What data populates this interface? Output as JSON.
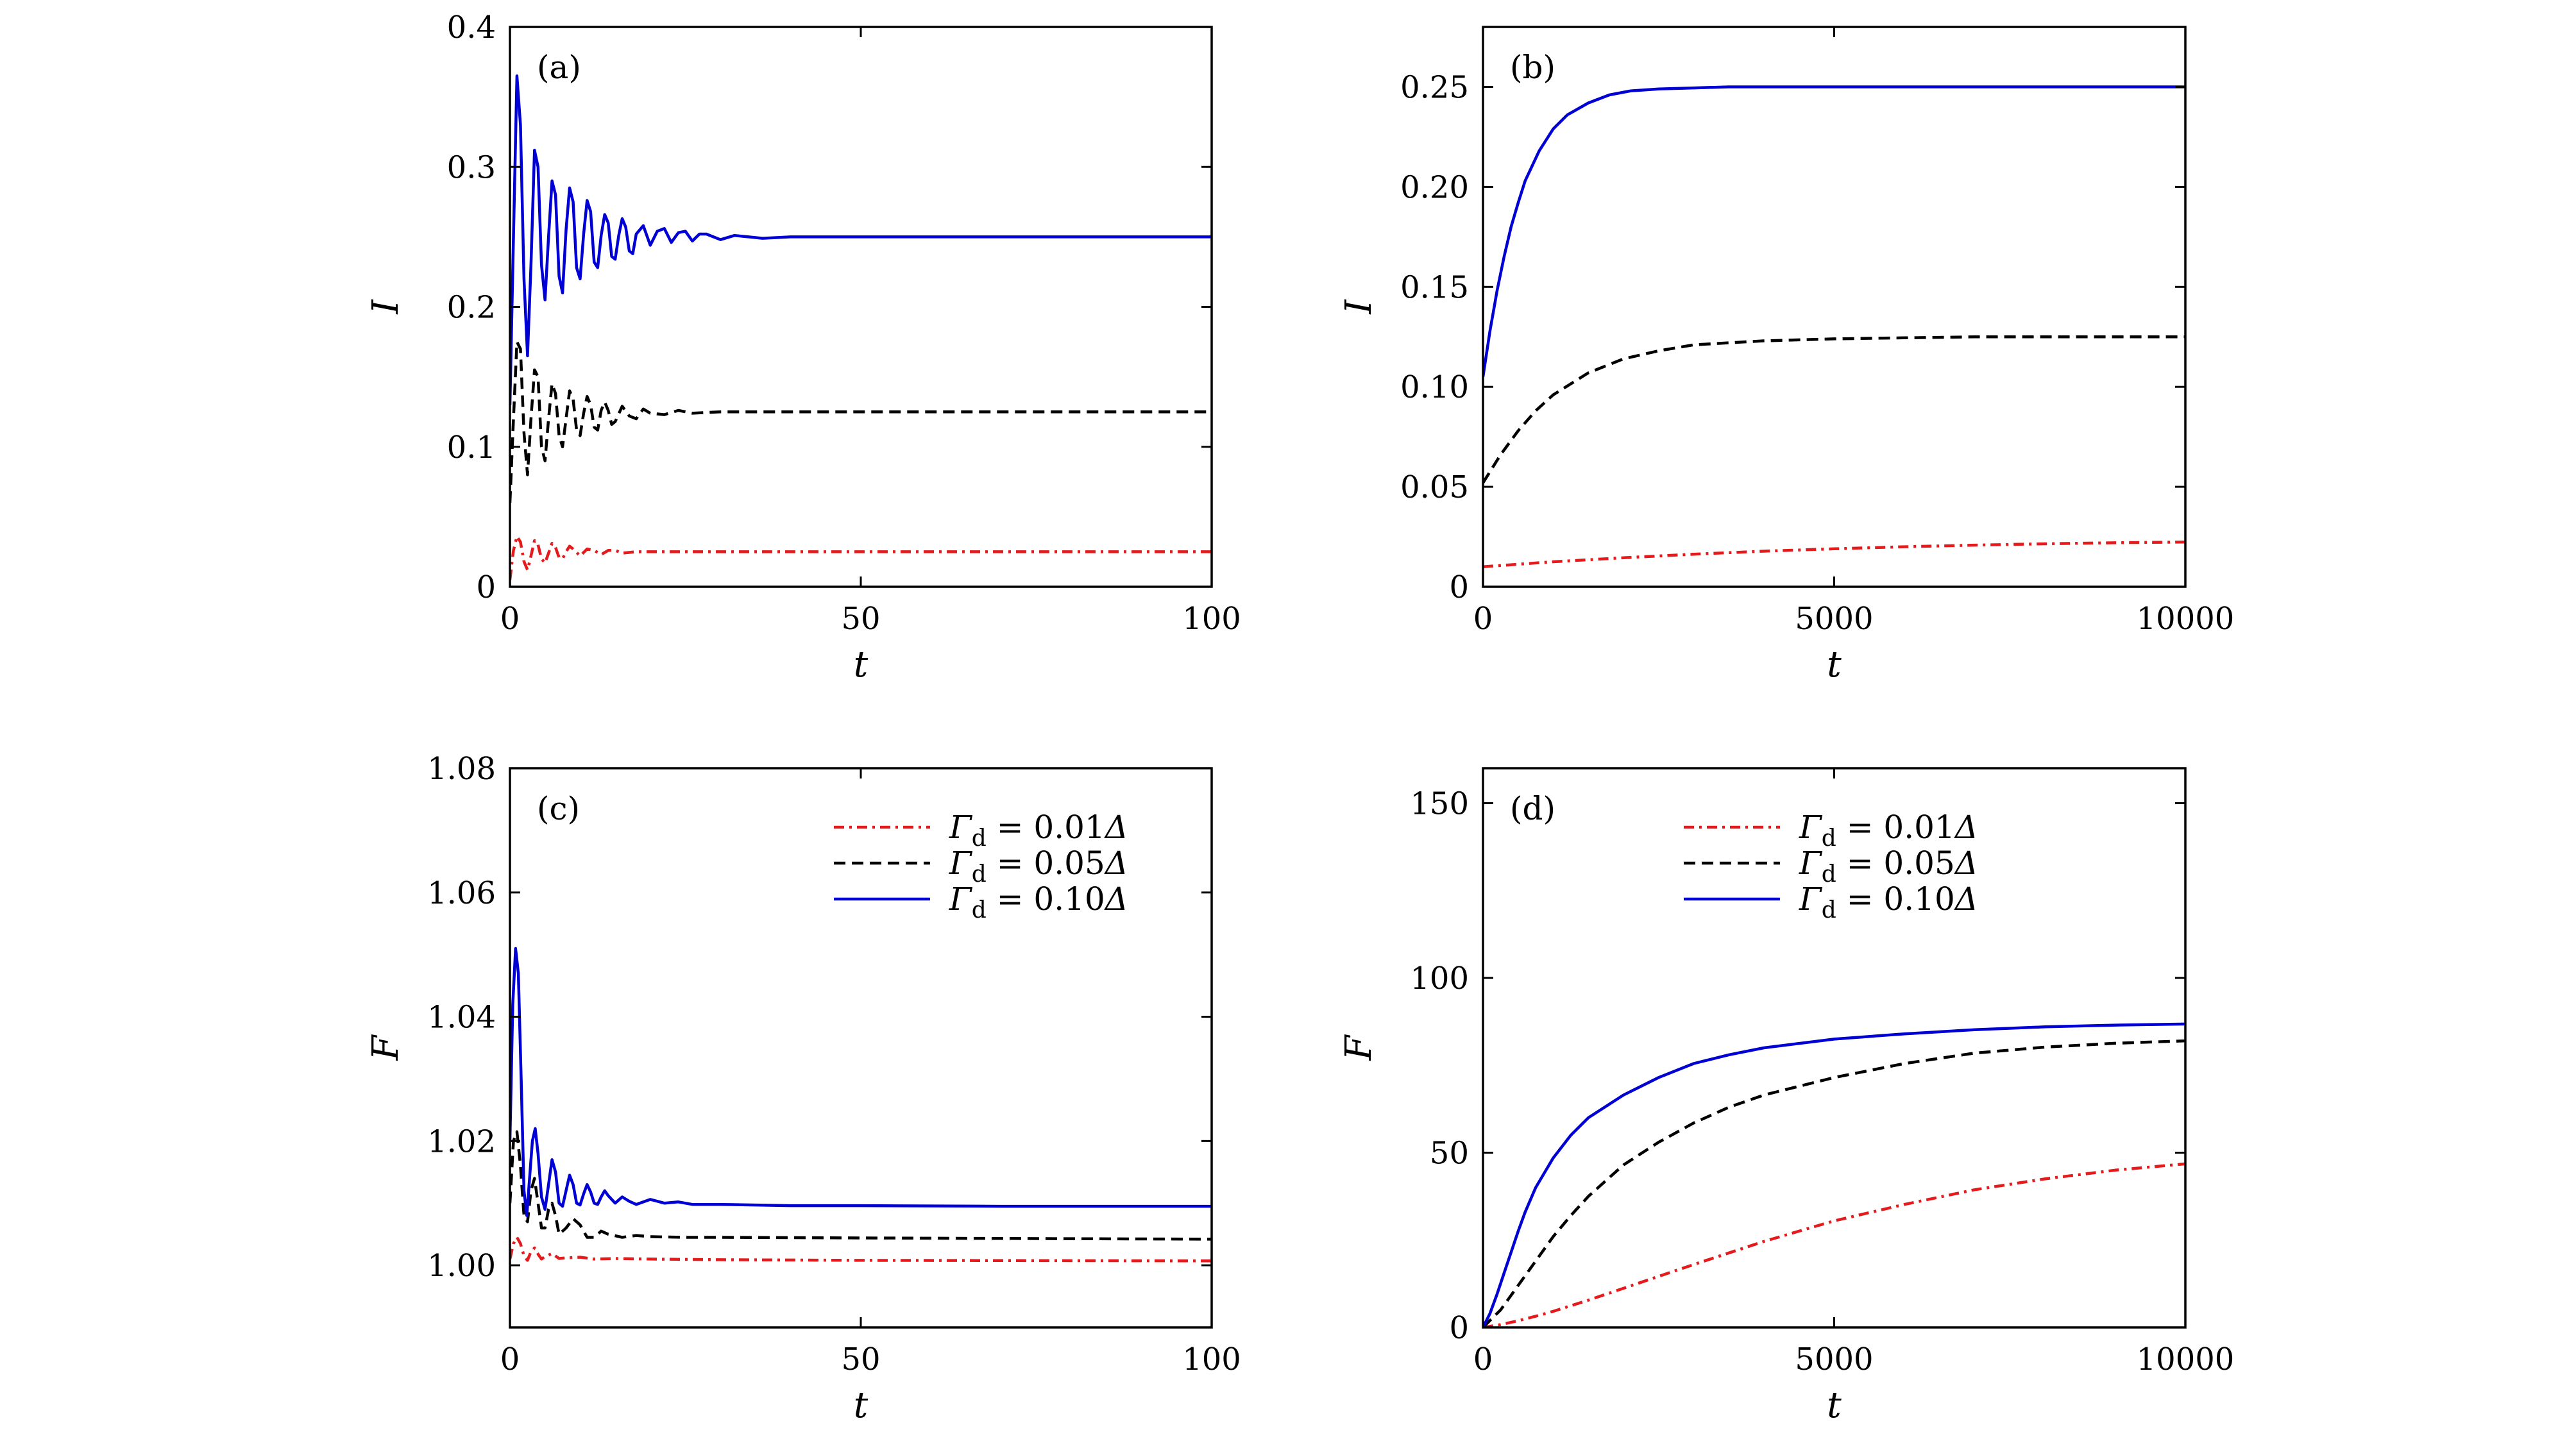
{
  "chart_data": [
    {
      "type": "line",
      "panel_label": "(a)",
      "xlabel": "t",
      "ylabel": "I",
      "xlim": [
        0,
        100
      ],
      "ylim": [
        0,
        0.4
      ],
      "xticks": [
        0,
        50,
        100
      ],
      "xtick_labels": [
        "0",
        "50",
        "100"
      ],
      "yticks": [
        0,
        0.1,
        0.2,
        0.3,
        0.4
      ],
      "ytick_labels": [
        "0",
        "0.1",
        "0.2",
        "0.3",
        "0.4"
      ],
      "grid": false,
      "legend": null,
      "series": [
        {
          "style": "dashdot",
          "color": "#e41a1c",
          "x": [
            0,
            0.5,
            1.0,
            1.5,
            2.0,
            2.5,
            3.0,
            3.5,
            4.0,
            4.5,
            5.0,
            5.5,
            6.0,
            6.5,
            7.0,
            7.5,
            8.0,
            8.5,
            9.0,
            10,
            11,
            12,
            13,
            14,
            15,
            16,
            18,
            20,
            25,
            30,
            40,
            50,
            60,
            80,
            100
          ],
          "y": [
            0.005,
            0.026,
            0.036,
            0.032,
            0.018,
            0.012,
            0.022,
            0.033,
            0.03,
            0.02,
            0.017,
            0.024,
            0.031,
            0.028,
            0.021,
            0.02,
            0.025,
            0.029,
            0.027,
            0.022,
            0.027,
            0.026,
            0.023,
            0.026,
            0.026,
            0.024,
            0.025,
            0.025,
            0.025,
            0.025,
            0.025,
            0.025,
            0.025,
            0.025,
            0.025
          ]
        },
        {
          "style": "dashed",
          "color": "#000000",
          "x": [
            0,
            0.5,
            1.0,
            1.5,
            2.0,
            2.5,
            3.0,
            3.5,
            4.0,
            4.5,
            5.0,
            5.5,
            6.0,
            6.5,
            7.0,
            7.5,
            8.0,
            8.5,
            9.0,
            9.5,
            10,
            10.5,
            11,
            11.5,
            12,
            12.5,
            13,
            13.5,
            14,
            14.5,
            15,
            16,
            17,
            18,
            19,
            20,
            22,
            24,
            26,
            30,
            40,
            50,
            60,
            80,
            100
          ],
          "y": [
            0.06,
            0.12,
            0.175,
            0.17,
            0.11,
            0.08,
            0.12,
            0.155,
            0.15,
            0.1,
            0.09,
            0.12,
            0.145,
            0.138,
            0.108,
            0.1,
            0.12,
            0.14,
            0.134,
            0.112,
            0.108,
            0.124,
            0.136,
            0.13,
            0.114,
            0.112,
            0.126,
            0.132,
            0.126,
            0.116,
            0.118,
            0.129,
            0.122,
            0.12,
            0.127,
            0.124,
            0.123,
            0.126,
            0.124,
            0.125,
            0.125,
            0.125,
            0.125,
            0.125,
            0.125
          ]
        },
        {
          "style": "solid",
          "color": "#0000d4",
          "x": [
            0,
            0.5,
            1.0,
            1.5,
            2.0,
            2.5,
            3.0,
            3.5,
            4.0,
            4.5,
            5.0,
            5.5,
            6.0,
            6.5,
            7.0,
            7.5,
            8.0,
            8.5,
            9.0,
            9.5,
            10,
            10.5,
            11,
            11.5,
            12,
            12.5,
            13,
            13.5,
            14,
            14.5,
            15,
            15.5,
            16,
            16.5,
            17,
            17.5,
            18,
            19,
            20,
            21,
            22,
            23,
            24,
            25,
            26,
            27,
            28,
            30,
            32,
            34,
            36,
            40,
            50,
            60,
            80,
            100
          ],
          "y": [
            0.13,
            0.25,
            0.365,
            0.33,
            0.22,
            0.165,
            0.23,
            0.312,
            0.3,
            0.23,
            0.205,
            0.25,
            0.29,
            0.28,
            0.222,
            0.21,
            0.255,
            0.285,
            0.275,
            0.228,
            0.22,
            0.252,
            0.276,
            0.268,
            0.232,
            0.228,
            0.251,
            0.266,
            0.26,
            0.236,
            0.234,
            0.251,
            0.263,
            0.257,
            0.24,
            0.238,
            0.252,
            0.258,
            0.244,
            0.254,
            0.256,
            0.246,
            0.253,
            0.254,
            0.247,
            0.252,
            0.252,
            0.248,
            0.251,
            0.25,
            0.249,
            0.25,
            0.25,
            0.25,
            0.25,
            0.25
          ]
        }
      ]
    },
    {
      "type": "line",
      "panel_label": "(b)",
      "xlabel": "t",
      "ylabel": "I",
      "xlim": [
        0,
        10000
      ],
      "ylim": [
        0,
        0.28
      ],
      "xticks": [
        0,
        5000,
        10000
      ],
      "xtick_labels": [
        "0",
        "5000",
        "10000"
      ],
      "yticks": [
        0,
        0.05,
        0.1,
        0.15,
        0.2,
        0.25
      ],
      "ytick_labels": [
        "0",
        "0.05",
        "0.10",
        "0.15",
        "0.20",
        "0.25"
      ],
      "grid": false,
      "legend": null,
      "series": [
        {
          "style": "dashdot",
          "color": "#e41a1c",
          "x": [
            0,
            1000,
            2000,
            3000,
            4000,
            5000,
            6000,
            7000,
            8000,
            9000,
            10000
          ],
          "y": [
            0.01,
            0.0125,
            0.0145,
            0.0163,
            0.0178,
            0.019,
            0.02,
            0.0208,
            0.0215,
            0.022,
            0.0224
          ]
        },
        {
          "style": "dashed",
          "color": "#000000",
          "x": [
            0,
            250,
            500,
            750,
            1000,
            1500,
            2000,
            2500,
            3000,
            4000,
            5000,
            6000,
            7000,
            8000,
            9000,
            10000
          ],
          "y": [
            0.052,
            0.066,
            0.078,
            0.088,
            0.096,
            0.107,
            0.114,
            0.118,
            0.121,
            0.123,
            0.124,
            0.1245,
            0.125,
            0.125,
            0.125,
            0.125
          ]
        },
        {
          "style": "solid",
          "color": "#0000d4",
          "x": [
            0,
            100,
            200,
            300,
            400,
            500,
            600,
            800,
            1000,
            1200,
            1500,
            1800,
            2100,
            2500,
            3000,
            3500,
            4000,
            5000,
            6000,
            8000,
            10000
          ],
          "y": [
            0.105,
            0.128,
            0.148,
            0.165,
            0.18,
            0.192,
            0.203,
            0.218,
            0.229,
            0.236,
            0.242,
            0.246,
            0.248,
            0.249,
            0.2495,
            0.25,
            0.25,
            0.25,
            0.25,
            0.25,
            0.25
          ]
        }
      ]
    },
    {
      "type": "line",
      "panel_label": "(c)",
      "xlabel": "t",
      "ylabel": "F",
      "xlim": [
        0,
        100
      ],
      "ylim": [
        0.99,
        1.08
      ],
      "xticks": [
        0,
        50,
        100
      ],
      "xtick_labels": [
        "0",
        "50",
        "100"
      ],
      "yticks": [
        1.0,
        1.02,
        1.04,
        1.06,
        1.08
      ],
      "ytick_labels": [
        "1.00",
        "1.02",
        "1.04",
        "1.06",
        "1.08"
      ],
      "grid": false,
      "legend": {
        "placement": "top-right",
        "entries": [
          {
            "symbol": "Γ",
            "subscript": "d",
            "rest": " = 0.01",
            "unit": "Δ"
          },
          {
            "symbol": "Γ",
            "subscript": "d",
            "rest": " = 0.05",
            "unit": "Δ"
          },
          {
            "symbol": "Γ",
            "subscript": "d",
            "rest": " = 0.10",
            "unit": "Δ"
          }
        ]
      },
      "series": [
        {
          "style": "dashdot",
          "color": "#e41a1c",
          "x": [
            0,
            0.5,
            1.0,
            1.5,
            2.0,
            2.5,
            3.0,
            3.5,
            4.0,
            4.5,
            5.0,
            6.0,
            7.0,
            8.0,
            10,
            12,
            15,
            20,
            30,
            50,
            100
          ],
          "y": [
            1.001,
            1.0035,
            1.0045,
            1.0035,
            1.0015,
            1.0008,
            1.0022,
            1.0028,
            1.0018,
            1.001,
            1.0014,
            1.0019,
            1.0011,
            1.0012,
            1.0013,
            1.001,
            1.0011,
            1.001,
            1.0009,
            1.0008,
            1.0007
          ]
        },
        {
          "style": "dashed",
          "color": "#000000",
          "x": [
            0,
            0.5,
            1.0,
            1.5,
            2.0,
            2.5,
            3.0,
            3.5,
            4.0,
            4.5,
            5.0,
            5.5,
            6.0,
            6.5,
            7.0,
            8.0,
            9.0,
            10,
            11,
            12,
            13,
            14,
            16,
            18,
            20,
            25,
            30,
            50,
            100
          ],
          "y": [
            1.01,
            1.02,
            1.0215,
            1.016,
            1.008,
            1.007,
            1.012,
            1.014,
            1.01,
            1.006,
            1.006,
            1.009,
            1.01,
            1.008,
            1.005,
            1.006,
            1.0075,
            1.0065,
            1.0045,
            1.0045,
            1.0055,
            1.005,
            1.0045,
            1.0048,
            1.0046,
            1.0045,
            1.0045,
            1.0044,
            1.0042
          ]
        },
        {
          "style": "solid",
          "color": "#0000d4",
          "x": [
            0,
            0.4,
            0.8,
            1.2,
            1.6,
            2.0,
            2.4,
            2.8,
            3.2,
            3.6,
            4.0,
            4.5,
            5.0,
            5.5,
            6.0,
            6.5,
            7.0,
            7.5,
            8.0,
            8.5,
            9.0,
            9.5,
            10,
            10.5,
            11,
            11.5,
            12,
            12.5,
            13,
            13.5,
            14,
            15,
            16,
            17,
            18,
            20,
            22,
            24,
            26,
            30,
            40,
            50,
            70,
            100
          ],
          "y": [
            1.02,
            1.042,
            1.051,
            1.047,
            1.03,
            1.012,
            1.008,
            1.014,
            1.02,
            1.022,
            1.018,
            1.011,
            1.009,
            1.013,
            1.017,
            1.015,
            1.01,
            1.0095,
            1.012,
            1.0145,
            1.013,
            1.01,
            1.0097,
            1.0115,
            1.013,
            1.0118,
            1.01,
            1.0098,
            1.011,
            1.012,
            1.0112,
            1.01,
            1.011,
            1.0103,
            1.0098,
            1.0106,
            1.01,
            1.0102,
            1.0098,
            1.0098,
            1.0096,
            1.0096,
            1.0095,
            1.0095
          ]
        }
      ]
    },
    {
      "type": "line",
      "panel_label": "(d)",
      "xlabel": "t",
      "ylabel": "F",
      "xlim": [
        0,
        10000
      ],
      "ylim": [
        0,
        160
      ],
      "xticks": [
        0,
        5000,
        10000
      ],
      "xtick_labels": [
        "0",
        "5000",
        "10000"
      ],
      "yticks": [
        0,
        50,
        100,
        150
      ],
      "ytick_labels": [
        "0",
        "50",
        "100",
        "150"
      ],
      "grid": false,
      "legend": {
        "placement": "top-center",
        "entries": [
          {
            "symbol": "Γ",
            "subscript": "d",
            "rest": " = 0.01",
            "unit": "Δ"
          },
          {
            "symbol": "Γ",
            "subscript": "d",
            "rest": " = 0.05",
            "unit": "Δ"
          },
          {
            "symbol": "Γ",
            "subscript": "d",
            "rest": " = 0.10",
            "unit": "Δ"
          }
        ]
      },
      "series": [
        {
          "style": "dashdot",
          "color": "#e41a1c",
          "x": [
            0,
            250,
            500,
            750,
            1000,
            1500,
            2000,
            2500,
            3000,
            4000,
            5000,
            6000,
            7000,
            8000,
            9000,
            10000
          ],
          "y": [
            0,
            0.8,
            1.9,
            3.2,
            4.6,
            7.8,
            11.2,
            14.6,
            18.0,
            24.6,
            30.5,
            35.2,
            39.4,
            42.5,
            45.0,
            46.8
          ]
        },
        {
          "style": "dashed",
          "color": "#000000",
          "x": [
            0,
            250,
            500,
            750,
            1000,
            1250,
            1500,
            2000,
            2500,
            3000,
            3500,
            4000,
            5000,
            6000,
            7000,
            8000,
            9000,
            10000
          ],
          "y": [
            0,
            5,
            12,
            19,
            26,
            32,
            37.5,
            46.5,
            53,
            58.5,
            63,
            66.5,
            71.5,
            75.5,
            78.5,
            80.2,
            81.3,
            82.0
          ]
        },
        {
          "style": "solid",
          "color": "#0000d4",
          "x": [
            0,
            100,
            200,
            300,
            400,
            500,
            600,
            750,
            1000,
            1250,
            1500,
            2000,
            2500,
            3000,
            3500,
            4000,
            5000,
            6000,
            7000,
            8000,
            9000,
            10000
          ],
          "y": [
            0,
            4,
            9.5,
            15.5,
            21.5,
            27.5,
            33,
            40,
            48.5,
            55,
            60,
            66.5,
            71.5,
            75.5,
            78.0,
            80.0,
            82.5,
            84.0,
            85.2,
            86.0,
            86.5,
            86.8
          ]
        }
      ]
    }
  ]
}
